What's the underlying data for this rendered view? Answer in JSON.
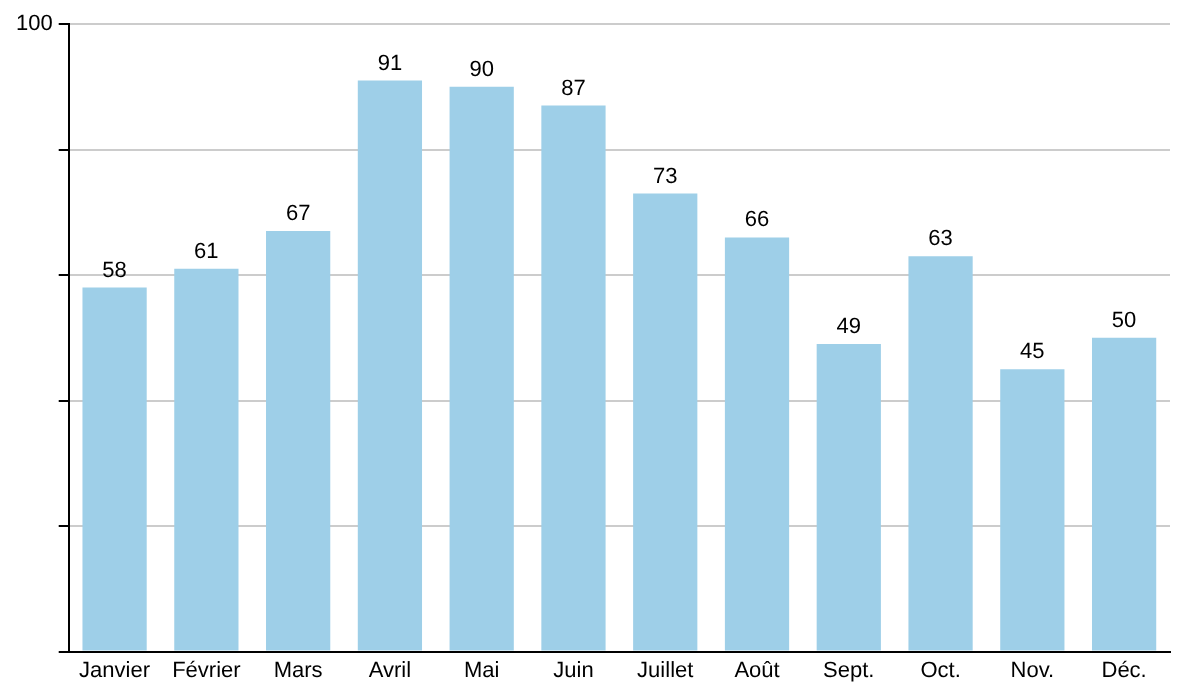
{
  "chart_data": {
    "type": "bar",
    "categories": [
      "Janvier",
      "Février",
      "Mars",
      "Avril",
      "Mai",
      "Juin",
      "Juillet",
      "Août",
      "Sept.",
      "Oct.",
      "Nov.",
      "Déc."
    ],
    "values": [
      58,
      61,
      67,
      91,
      90,
      87,
      73,
      66,
      49,
      63,
      45,
      50
    ],
    "color": "#9ecfe8",
    "ylim": [
      0,
      100
    ],
    "yticks": [
      0,
      {
        "value": 20,
        "label": null
      },
      {
        "value": 40,
        "label": null
      },
      {
        "value": 60,
        "label": null
      },
      {
        "value": 80,
        "label": null
      },
      100
    ],
    "grid": "y",
    "data_labels": true
  }
}
